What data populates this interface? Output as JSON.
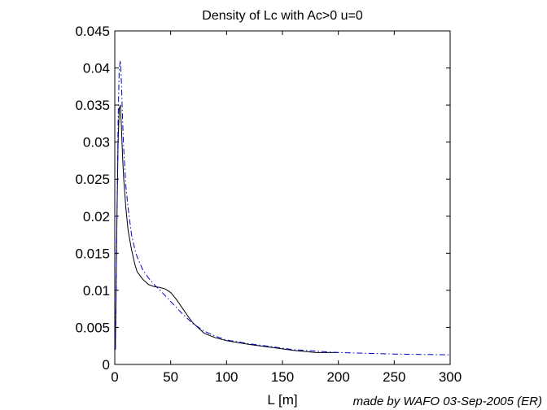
{
  "chart_data": {
    "type": "line",
    "title": "Density of Lc with Ac>0  u=0",
    "xlabel": "L [m]",
    "ylabel": "",
    "xlim": [
      0,
      300
    ],
    "ylim": [
      0,
      0.045
    ],
    "xticks": [
      0,
      50,
      100,
      150,
      200,
      250,
      300
    ],
    "yticks": [
      0,
      0.005,
      0.01,
      0.015,
      0.02,
      0.025,
      0.03,
      0.035,
      0.04,
      0.045
    ],
    "xtick_labels": [
      "0",
      "50",
      "100",
      "150",
      "200",
      "250",
      "300"
    ],
    "ytick_labels": [
      "0",
      "0.005",
      "0.01",
      "0.015",
      "0.02",
      "0.025",
      "0.03",
      "0.035",
      "0.04",
      "0.045"
    ],
    "grid": false,
    "series": [
      {
        "style": "solid",
        "color": "#000000",
        "x": [
          0.5,
          1,
          2,
          3,
          4,
          5,
          6,
          7,
          8,
          10,
          12,
          15,
          18,
          20,
          25,
          30,
          35,
          40,
          45,
          50,
          55,
          60,
          65,
          70,
          80,
          90,
          100,
          120,
          140,
          160,
          180,
          200
        ],
        "y": [
          0.002,
          0.008,
          0.02,
          0.03,
          0.0345,
          0.035,
          0.032,
          0.028,
          0.025,
          0.021,
          0.018,
          0.0155,
          0.0135,
          0.0125,
          0.0115,
          0.0108,
          0.0105,
          0.0104,
          0.0102,
          0.0097,
          0.0088,
          0.0077,
          0.0066,
          0.0056,
          0.0042,
          0.0036,
          0.0032,
          0.0027,
          0.0023,
          0.0019,
          0.0016,
          0.0016
        ]
      },
      {
        "style": "dash-dot",
        "color": "#0000cc",
        "x": [
          0.5,
          1,
          2,
          3,
          4,
          5,
          6,
          7,
          8,
          10,
          12,
          15,
          18,
          20,
          25,
          30,
          35,
          40,
          45,
          50,
          55,
          60,
          70,
          80,
          90,
          100,
          120,
          140,
          160,
          180,
          200,
          250,
          300
        ],
        "y": [
          0.002,
          0.007,
          0.02,
          0.033,
          0.04,
          0.041,
          0.038,
          0.033,
          0.029,
          0.024,
          0.021,
          0.0175,
          0.0155,
          0.0145,
          0.0128,
          0.0117,
          0.0108,
          0.0101,
          0.0093,
          0.0085,
          0.0077,
          0.0069,
          0.0055,
          0.0045,
          0.0038,
          0.0033,
          0.0028,
          0.0024,
          0.002,
          0.0018,
          0.0016,
          0.0014,
          0.0013
        ]
      }
    ]
  },
  "credit": "made by WAFO 03-Sep-2005 (ER)"
}
